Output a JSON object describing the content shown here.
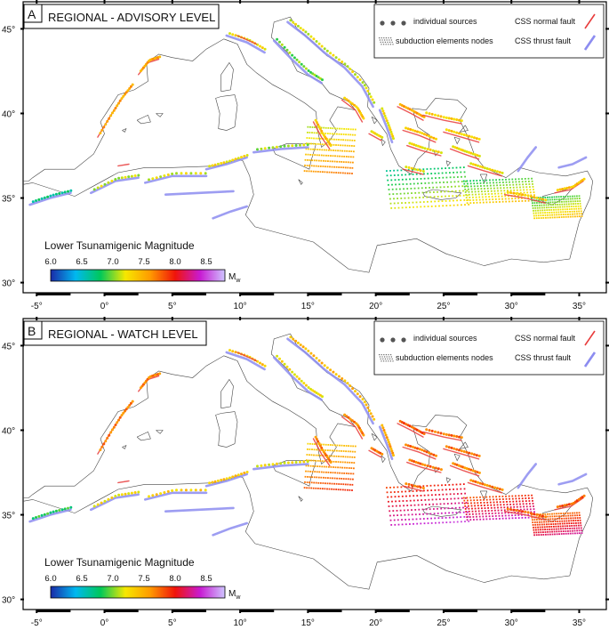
{
  "colorbar": {
    "title": "Lower Tsunamigenic Magnitude",
    "ticks": [
      "6.0",
      "6.5",
      "7.0",
      "7.5",
      "8.0",
      "8.5"
    ],
    "unit_main": "M",
    "unit_sub": "w",
    "range": [
      6.0,
      8.8
    ],
    "stops": [
      "#1a2aa8",
      "#00b8f0",
      "#00c85a",
      "#f6e800",
      "#ff9a00",
      "#f0140a",
      "#c81ad2",
      "#cfc4ff"
    ]
  },
  "legend": {
    "individual_sources": "individual sources",
    "subduction_nodes": "subduction elements nodes",
    "css_normal": "CSS normal fault",
    "css_thrust": "CSS thrust fault",
    "normal_color": "#e83c3c",
    "thrust_color": "#8c8cf0"
  },
  "axes": {
    "lon_ticks": [
      "-5°",
      "0°",
      "5°",
      "10°",
      "15°",
      "20°",
      "25°",
      "30°",
      "35°"
    ],
    "lat_ticks": [
      "45°",
      "40°",
      "35°",
      "30°"
    ],
    "lon_values": [
      -5,
      0,
      5,
      10,
      15,
      20,
      25,
      30,
      35
    ],
    "lat_values": [
      45,
      40,
      35,
      30
    ]
  },
  "panels": [
    {
      "letter": "A",
      "title": "REGIONAL - ADVISORY LEVEL"
    },
    {
      "letter": "B",
      "title": "REGIONAL - WATCH LEVEL"
    }
  ]
}
